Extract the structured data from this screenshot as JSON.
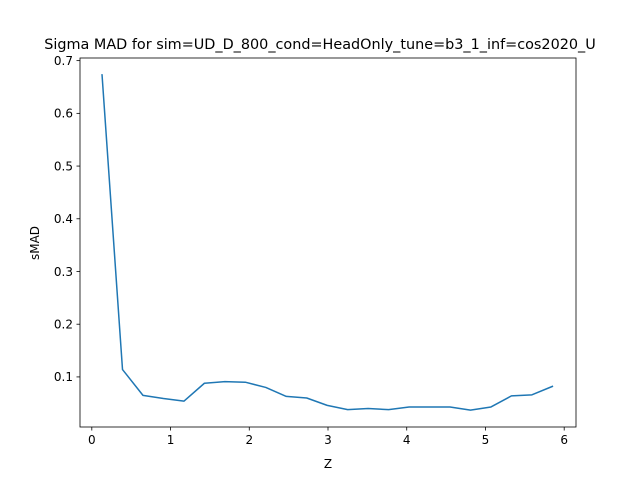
{
  "chart_data": {
    "type": "line",
    "title": "Sigma MAD for sim=UD_D_800_cond=HeadOnly_tune=b3_1_inf=cos2020_U",
    "xlabel": "Z",
    "ylabel": "sMAD",
    "xlim": [
      -0.15,
      6.15
    ],
    "ylim": [
      0.005,
      0.705
    ],
    "xticks": [
      0,
      1,
      2,
      3,
      4,
      5,
      6
    ],
    "xtick_labels": [
      "0",
      "1",
      "2",
      "3",
      "4",
      "5",
      "6"
    ],
    "yticks": [
      0.1,
      0.2,
      0.3,
      0.4,
      0.5,
      0.6,
      0.7
    ],
    "ytick_labels": [
      "0.1",
      "0.2",
      "0.3",
      "0.4",
      "0.5",
      "0.6",
      "0.7"
    ],
    "grid": false,
    "series": [
      {
        "color": "#1f77b4",
        "x": [
          0.13,
          0.39,
          0.65,
          0.91,
          1.17,
          1.43,
          1.69,
          1.95,
          2.21,
          2.47,
          2.73,
          2.99,
          3.25,
          3.51,
          3.77,
          4.03,
          4.29,
          4.55,
          4.81,
          5.07,
          5.33,
          5.59,
          5.85
        ],
        "y": [
          0.673,
          0.114,
          0.065,
          0.059,
          0.054,
          0.088,
          0.091,
          0.09,
          0.08,
          0.063,
          0.06,
          0.046,
          0.038,
          0.04,
          0.038,
          0.043,
          0.043,
          0.043,
          0.037,
          0.043,
          0.064,
          0.066,
          0.082
        ]
      }
    ]
  }
}
